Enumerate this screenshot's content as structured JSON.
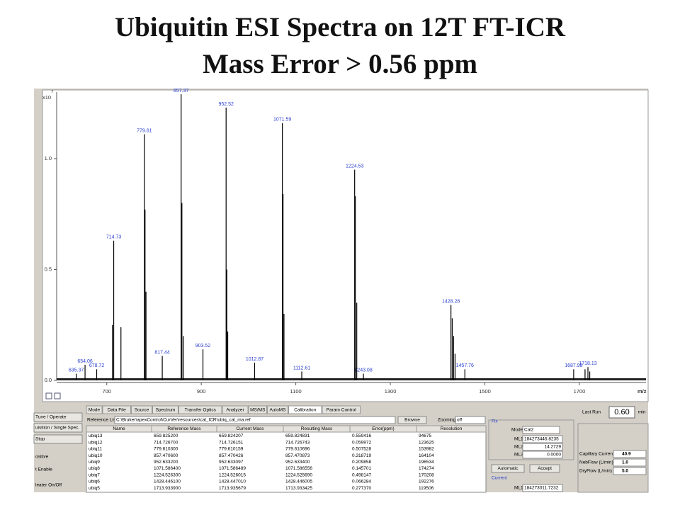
{
  "title": {
    "line1": "Ubiquitin ESI Spectra on 12T FT-ICR",
    "line2": "Mass Error > 0.56 ppm"
  },
  "chart_data": {
    "type": "stem",
    "y_scale_label": "x10",
    "y_scale_exponent": "7",
    "xlabel": "m/z",
    "xlim": [
      594,
      1841
    ],
    "xticks": [
      700,
      900,
      1100,
      1300,
      1500,
      1700
    ],
    "ylim": [
      0,
      1.3
    ],
    "yticks": [
      {
        "value": 0,
        "label": "0.0"
      },
      {
        "value": 0.5,
        "label": "0.5"
      },
      {
        "value": 1,
        "label": "1.0"
      }
    ],
    "color": "#000000",
    "label_color": "#2a3fd0",
    "series": [
      {
        "labeled": true,
        "x": [
          635.37,
          654.06,
          678.72,
          714.73,
          779.61,
          817.44,
          857.37,
          903.52,
          952.52,
          1012.87,
          1071.59,
          1112.61,
          1224.53,
          1243.08,
          1428.28,
          1457.76,
          1687.98,
          1718.13
        ],
        "values": [
          0.03,
          0.07,
          0.05,
          0.63,
          1.11,
          0.11,
          1.29,
          0.14,
          1.23,
          0.08,
          1.16,
          0.04,
          0.95,
          0.03,
          0.34,
          0.05,
          0.05,
          0.06
        ]
      },
      {
        "labeled": false,
        "x": [
          712,
          730,
          781,
          783,
          859,
          862,
          954,
          956,
          1073,
          1075,
          1226,
          1229,
          1431,
          1434,
          1437,
          1712,
          1722
        ],
        "values": [
          0.25,
          0.24,
          0.77,
          0.4,
          0.8,
          0.2,
          0.5,
          0.22,
          0.84,
          0.3,
          0.83,
          0.35,
          0.28,
          0.2,
          0.12,
          0.05,
          0.04
        ]
      }
    ]
  },
  "ui": {
    "left_buttons": [
      "Tune / Operate",
      "uisition / Single Spec.",
      "Stop",
      "ositive",
      "t Enable",
      "leater On/Off"
    ],
    "tabs": [
      "Mode",
      "Data File",
      "Source",
      "Spectrum",
      "Transfer Optics",
      "Analyzer",
      "MS/MS",
      "AutoMS",
      "Calibration",
      "Param Control"
    ],
    "active_tab": "Calibration",
    "reference_list": {
      "label": "Reference List",
      "path": "C:\\Bruker\\apexControl\\CurVer\\resources\\cal_ICR\\ubiq_cal_ma.ref",
      "browse": "Browse",
      "zooming_label": "Zooming",
      "zooming": "off"
    },
    "table": {
      "columns": [
        "Name",
        "Reference Mass",
        "Current Mass",
        "Resulting Mass",
        "Error(ppm)",
        "Resolution"
      ],
      "rows": [
        [
          "ubiq13",
          "659.825200",
          "659.824207",
          "659.824831",
          "0.559416",
          "94675"
        ],
        [
          "ubiq12",
          "714.726700",
          "714.726151",
          "714.726743",
          "0.059972",
          "123625"
        ],
        [
          "ubiq11",
          "779.610300",
          "779.610159",
          "779.610696",
          "0.507528",
          "153982"
        ],
        [
          "ubiq10",
          "857.470600",
          "857.470426",
          "857.470873",
          "0.318719",
          "164104"
        ],
        [
          "ubiq9",
          "952.633200",
          "952.633097",
          "952.633400",
          "0.209858",
          "196534"
        ],
        [
          "ubiq8",
          "1071.586400",
          "1071.586489",
          "1071.586556",
          "0.145701",
          "174274"
        ],
        [
          "ubiq7",
          "1224.526300",
          "1224.526015",
          "1224.525690",
          "0.498147",
          "170208"
        ],
        [
          "ubiq6",
          "1428.446100",
          "1428.447010",
          "1428.446005",
          "0.066284",
          "192276"
        ],
        [
          "ubiq5",
          "1713.933900",
          "1713.935679",
          "1713.933425",
          "0.277370",
          "119506"
        ]
      ]
    },
    "fix": {
      "title": "Fix",
      "mode_label": "Mode",
      "mode": "Cal2",
      "ml": [
        {
          "label": "ML1",
          "value": "184273446.8235"
        },
        {
          "label": "ML2",
          "value": "14.2729"
        },
        {
          "label": "ML3",
          "value": "0.0000"
        }
      ],
      "automatic": "Automatic",
      "accept": "Accept",
      "current_title": "Current",
      "current_ml": {
        "label": "ML1",
        "value": "184273011.7232"
      }
    },
    "status": {
      "last_run_label": "Last Run",
      "last_run": "0.60",
      "unit": "min",
      "params": [
        {
          "label": "Capillary Current",
          "value": "40.9"
        },
        {
          "label": "NebFlow (L/min)",
          "value": "1.0"
        },
        {
          "label": "DryFlow (L/min)",
          "value": "5.0"
        }
      ]
    }
  }
}
